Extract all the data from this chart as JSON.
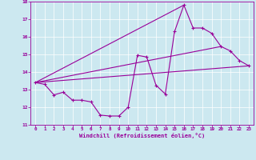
{
  "xlabel": "Windchill (Refroidissement éolien,°C)",
  "bg_color": "#cce8f0",
  "line_color": "#990099",
  "xlim": [
    -0.5,
    23.5
  ],
  "ylim": [
    11,
    18
  ],
  "xticks": [
    0,
    1,
    2,
    3,
    4,
    5,
    6,
    7,
    8,
    9,
    10,
    11,
    12,
    13,
    14,
    15,
    16,
    17,
    18,
    19,
    20,
    21,
    22,
    23
  ],
  "yticks": [
    11,
    12,
    13,
    14,
    15,
    16,
    17,
    18
  ],
  "series": [
    [
      0,
      13.4
    ],
    [
      1,
      13.3
    ],
    [
      2,
      12.7
    ],
    [
      3,
      12.85
    ],
    [
      4,
      12.4
    ],
    [
      5,
      12.4
    ],
    [
      6,
      12.3
    ],
    [
      7,
      11.55
    ],
    [
      8,
      11.5
    ],
    [
      9,
      11.5
    ],
    [
      10,
      12.0
    ],
    [
      11,
      14.95
    ],
    [
      12,
      14.85
    ],
    [
      13,
      13.25
    ],
    [
      14,
      12.75
    ],
    [
      15,
      16.3
    ],
    [
      16,
      17.8
    ],
    [
      17,
      16.5
    ],
    [
      18,
      16.5
    ],
    [
      19,
      16.2
    ],
    [
      20,
      15.45
    ],
    [
      21,
      15.2
    ],
    [
      22,
      14.65
    ],
    [
      23,
      14.35
    ]
  ],
  "line1": [
    [
      0,
      13.4
    ],
    [
      23,
      14.35
    ]
  ],
  "line2": [
    [
      0,
      13.4
    ],
    [
      20,
      15.45
    ]
  ],
  "line3": [
    [
      0,
      13.4
    ],
    [
      16,
      17.8
    ]
  ]
}
